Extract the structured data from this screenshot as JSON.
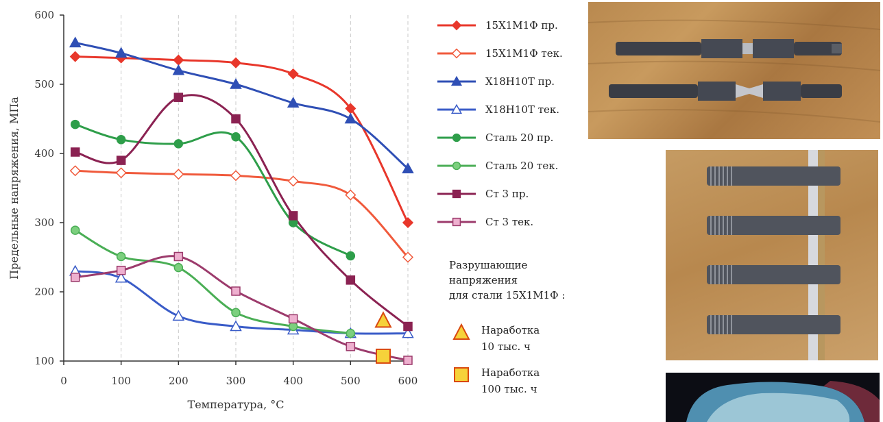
{
  "chart_data": {
    "type": "line",
    "title": "",
    "xlabel": "Температура, °С",
    "ylabel": "Предельные напряжения, МПа",
    "xlim": [
      0,
      600
    ],
    "ylim": [
      100,
      600
    ],
    "xticks": [
      "0",
      "100",
      "200",
      "300",
      "400",
      "500",
      "600"
    ],
    "yticks": [
      "100",
      "200",
      "300",
      "400",
      "500",
      "600"
    ],
    "grid": "dashed vertical",
    "legend_position": "right",
    "series": [
      {
        "name": "15Х1М1Ф пр.",
        "color": "#e8372b",
        "marker": "diamond-filled",
        "x": [
          20,
          100,
          200,
          300,
          400,
          500,
          600
        ],
        "y": [
          540,
          538,
          535,
          531,
          515,
          465,
          300
        ]
      },
      {
        "name": "15Х1М1Ф тек.",
        "color": "#f05a3c",
        "marker": "diamond-open",
        "x": [
          20,
          100,
          200,
          300,
          400,
          500,
          600
        ],
        "y": [
          375,
          372,
          370,
          368,
          360,
          340,
          250
        ]
      },
      {
        "name": "Х18Н10Т пр.",
        "color": "#2f4fb5",
        "marker": "triangle-filled",
        "x": [
          20,
          100,
          200,
          300,
          400,
          500,
          600
        ],
        "y": [
          560,
          545,
          520,
          500,
          473,
          450,
          378
        ]
      },
      {
        "name": "Х18Н10Т тек.",
        "color": "#3a5cc8",
        "marker": "triangle-open",
        "x": [
          20,
          100,
          200,
          300,
          400,
          500,
          600
        ],
        "y": [
          230,
          220,
          165,
          150,
          145,
          140,
          140
        ]
      },
      {
        "name": "Сталь 20 пр.",
        "color": "#2e9e4a",
        "marker": "circle-filled",
        "x": [
          20,
          100,
          200,
          300,
          400,
          500
        ],
        "y": [
          442,
          420,
          414,
          424,
          300,
          252
        ]
      },
      {
        "name": "Сталь 20 тек.",
        "color": "#4aae55",
        "marker": "circle-light",
        "x": [
          20,
          100,
          200,
          300,
          400,
          500
        ],
        "y": [
          289,
          251,
          235,
          170,
          150,
          140
        ]
      },
      {
        "name": "Ст 3 пр.",
        "color": "#8b2252",
        "marker": "square-filled",
        "x": [
          20,
          100,
          200,
          300,
          400,
          500,
          600
        ],
        "y": [
          402,
          390,
          481,
          450,
          310,
          217,
          150
        ]
      },
      {
        "name": "Ст 3 тек.",
        "color": "#9c3b6c",
        "marker": "square-light",
        "x": [
          20,
          100,
          200,
          300,
          400,
          500,
          600
        ],
        "y": [
          221,
          231,
          251,
          201,
          161,
          121,
          101
        ]
      }
    ],
    "points": [
      {
        "name": "Наработка 10 тыс. ч",
        "marker": "triangle-yellow",
        "x": 557,
        "y": 158
      },
      {
        "name": "Наработка 100 тыс. ч",
        "marker": "square-yellow",
        "x": 557,
        "y": 107
      }
    ]
  },
  "annotations": {
    "rupture_title": [
      "Разрушающие",
      "напряжения",
      "для стали 15Х1М1Ф :"
    ],
    "items": [
      {
        "marker": "triangle-yellow",
        "lines": [
          "Наработка",
          "10 тыс. ч"
        ]
      },
      {
        "marker": "square-yellow",
        "lines": [
          "Наработка",
          "100 тыс. ч"
        ]
      }
    ]
  },
  "photos": [
    {
      "subject": "two-turned-test-specimens-icon"
    },
    {
      "subject": "four-threaded-specimens-icon"
    },
    {
      "subject": "fracture-surface-icon"
    }
  ],
  "colors": {
    "marker_fill_yellow": "#f6d23a",
    "marker_stroke_yellow": "#d9480f"
  }
}
